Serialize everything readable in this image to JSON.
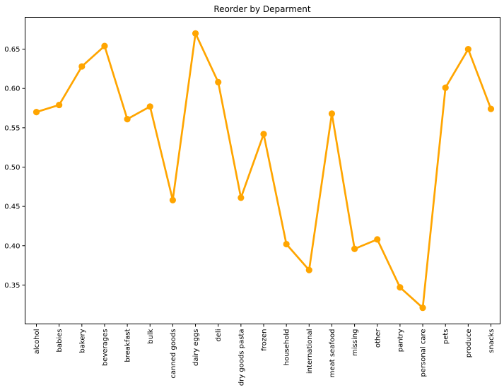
{
  "chart_data": {
    "type": "line",
    "title": "Reorder by Deparment",
    "xlabel": "",
    "ylabel": "",
    "categories": [
      "alcohol",
      "babies",
      "bakery",
      "beverages",
      "breakfast",
      "bulk",
      "canned goods",
      "dairy eggs",
      "deli",
      "dry goods pasta",
      "frozen",
      "household",
      "international",
      "meat seafood",
      "missing",
      "other",
      "pantry",
      "personal care",
      "pets",
      "produce",
      "snacks"
    ],
    "values": [
      0.57,
      0.579,
      0.628,
      0.654,
      0.561,
      0.577,
      0.458,
      0.67,
      0.608,
      0.461,
      0.542,
      0.402,
      0.369,
      0.568,
      0.396,
      0.408,
      0.347,
      0.321,
      0.601,
      0.65,
      0.574
    ],
    "ylim": [
      0.3005,
      0.6905
    ],
    "yticks": [
      "0.35",
      "0.40",
      "0.45",
      "0.50",
      "0.55",
      "0.60",
      "0.65"
    ],
    "color": "#FFA500",
    "grid": false
  }
}
